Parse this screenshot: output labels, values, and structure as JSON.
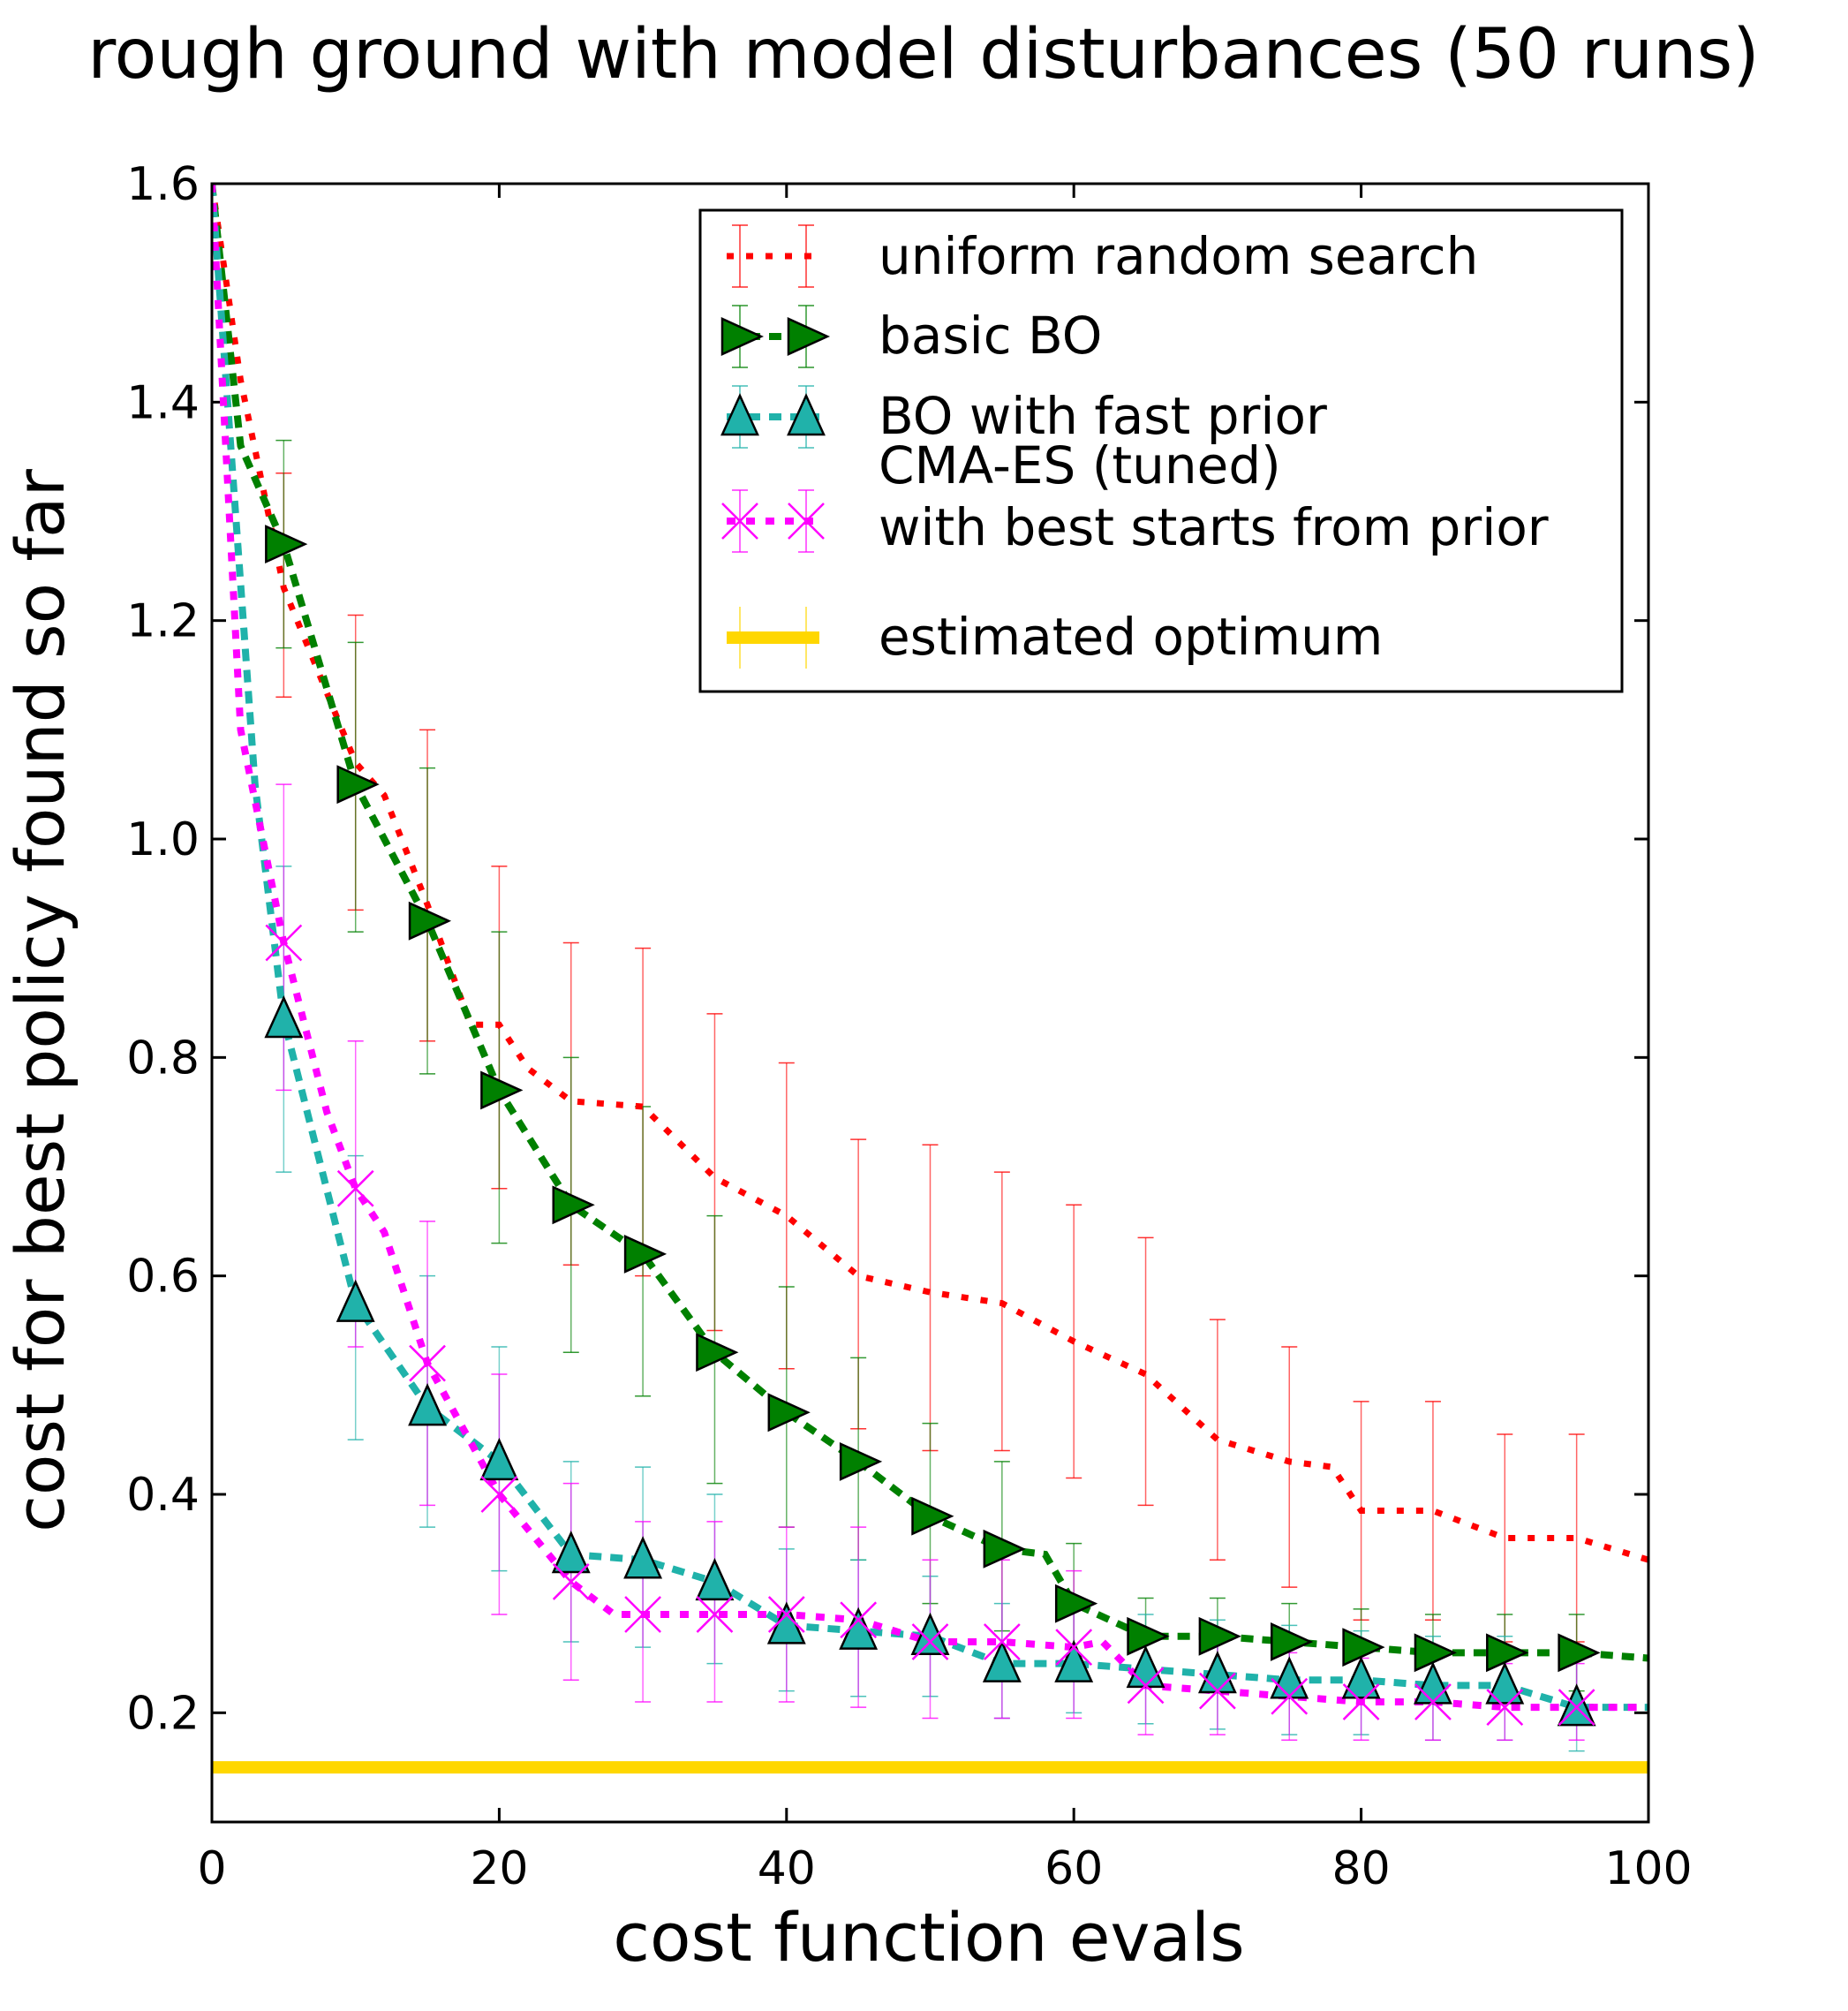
{
  "chart_data": {
    "type": "line",
    "title": "rough ground with model disturbances (50 runs)",
    "xlabel": "cost function evals",
    "ylabel": "cost for best policy found so far",
    "xlim": [
      0,
      100
    ],
    "ylim": [
      0.1,
      1.6
    ],
    "xticks": [
      0,
      20,
      40,
      60,
      80,
      100
    ],
    "xtick_labels": [
      "0",
      "20",
      "40",
      "60",
      "80",
      "100"
    ],
    "yticks": [
      0.2,
      0.4,
      0.6,
      0.8,
      1.0,
      1.2,
      1.4,
      1.6
    ],
    "ytick_labels": [
      "0.2",
      "0.4",
      "0.6",
      "0.8",
      "1.0",
      "1.2",
      "1.4",
      "1.6"
    ],
    "grid": false,
    "legend_position": "top-right",
    "series": [
      {
        "name": "uniform random search",
        "color": "#ff0000",
        "marker": "none",
        "x": [
          0,
          2,
          5,
          10,
          12,
          15,
          18,
          20,
          22,
          25,
          30,
          35,
          40,
          45,
          50,
          55,
          60,
          65,
          70,
          75,
          78,
          80,
          85,
          90,
          95,
          100
        ],
        "y": [
          1.6,
          1.42,
          1.23,
          1.07,
          1.04,
          0.94,
          0.83,
          0.83,
          0.79,
          0.76,
          0.755,
          0.69,
          0.655,
          0.6,
          0.585,
          0.575,
          0.54,
          0.51,
          0.45,
          0.43,
          0.425,
          0.385,
          0.385,
          0.36,
          0.36,
          0.34
        ],
        "error_x": [
          5,
          10,
          15,
          20,
          25,
          30,
          35,
          40,
          45,
          50,
          55,
          60,
          65,
          70,
          75,
          80,
          85,
          90,
          95
        ],
        "error_lower": [
          1.13,
          0.935,
          0.815,
          0.68,
          0.61,
          0.6,
          0.55,
          0.515,
          0.46,
          0.44,
          0.44,
          0.415,
          0.39,
          0.34,
          0.315,
          0.285,
          0.285,
          0.265,
          0.265
        ],
        "error_upper": [
          1.335,
          1.205,
          1.1,
          0.975,
          0.905,
          0.9,
          0.84,
          0.795,
          0.725,
          0.72,
          0.695,
          0.665,
          0.635,
          0.56,
          0.535,
          0.485,
          0.485,
          0.455,
          0.455
        ]
      },
      {
        "name": "basic BO",
        "color": "#008000",
        "marker": "triangle-right",
        "x": [
          0,
          2,
          5,
          10,
          15,
          20,
          25,
          30,
          35,
          40,
          45,
          50,
          55,
          58,
          60,
          65,
          70,
          75,
          80,
          85,
          90,
          95,
          100
        ],
        "y": [
          1.6,
          1.36,
          1.27,
          1.05,
          0.925,
          0.77,
          0.665,
          0.62,
          0.53,
          0.475,
          0.43,
          0.38,
          0.35,
          0.345,
          0.3,
          0.27,
          0.27,
          0.265,
          0.26,
          0.255,
          0.255,
          0.255,
          0.25
        ],
        "marker_x": [
          5,
          10,
          15,
          20,
          25,
          30,
          35,
          40,
          45,
          50,
          55,
          60,
          65,
          70,
          75,
          80,
          85,
          90,
          95
        ],
        "error_x": [
          5,
          10,
          15,
          20,
          25,
          30,
          35,
          40,
          45,
          50,
          55,
          60,
          65,
          70,
          75,
          80,
          85,
          90,
          95
        ],
        "error_lower": [
          1.175,
          0.915,
          0.785,
          0.63,
          0.53,
          0.49,
          0.41,
          0.37,
          0.34,
          0.3,
          0.275,
          0.245,
          0.24,
          0.235,
          0.23,
          0.225,
          0.22,
          0.22,
          0.22
        ],
        "error_upper": [
          1.365,
          1.18,
          1.065,
          0.915,
          0.8,
          0.755,
          0.655,
          0.59,
          0.525,
          0.465,
          0.43,
          0.355,
          0.305,
          0.305,
          0.3,
          0.295,
          0.29,
          0.29,
          0.29
        ]
      },
      {
        "name": "BO with fast prior",
        "color": "#20b2aa",
        "marker": "triangle-up",
        "x": [
          0,
          3,
          5,
          10,
          15,
          20,
          25,
          30,
          35,
          40,
          45,
          50,
          55,
          60,
          65,
          70,
          75,
          80,
          85,
          90,
          95,
          100
        ],
        "y": [
          1.6,
          1.05,
          0.835,
          0.575,
          0.48,
          0.43,
          0.345,
          0.34,
          0.32,
          0.28,
          0.275,
          0.27,
          0.245,
          0.245,
          0.24,
          0.235,
          0.23,
          0.23,
          0.225,
          0.225,
          0.205,
          0.205
        ],
        "marker_x": [
          5,
          10,
          15,
          20,
          25,
          30,
          35,
          40,
          45,
          50,
          55,
          60,
          65,
          70,
          75,
          80,
          85,
          90,
          95
        ],
        "error_x": [
          5,
          10,
          15,
          20,
          25,
          30,
          35,
          40,
          45,
          50,
          55,
          60,
          65,
          70,
          75,
          80,
          85,
          90,
          95
        ],
        "error_lower": [
          0.695,
          0.45,
          0.37,
          0.33,
          0.265,
          0.26,
          0.245,
          0.22,
          0.215,
          0.215,
          0.195,
          0.2,
          0.19,
          0.185,
          0.18,
          0.18,
          0.175,
          0.175,
          0.165
        ],
        "error_upper": [
          0.975,
          0.71,
          0.6,
          0.535,
          0.43,
          0.425,
          0.4,
          0.35,
          0.34,
          0.325,
          0.3,
          0.295,
          0.29,
          0.285,
          0.28,
          0.275,
          0.27,
          0.27,
          0.25
        ]
      },
      {
        "name": "CMA-ES (tuned)\nwith best starts from prior",
        "color": "#ff00ff",
        "marker": "x",
        "x": [
          0,
          2,
          5,
          8,
          10,
          12,
          15,
          20,
          25,
          28,
          30,
          35,
          40,
          45,
          50,
          55,
          60,
          62,
          65,
          70,
          75,
          80,
          85,
          90,
          95,
          100
        ],
        "y": [
          1.6,
          1.1,
          0.905,
          0.75,
          0.68,
          0.64,
          0.52,
          0.4,
          0.32,
          0.29,
          0.29,
          0.29,
          0.29,
          0.285,
          0.265,
          0.265,
          0.26,
          0.265,
          0.225,
          0.22,
          0.215,
          0.21,
          0.21,
          0.205,
          0.205,
          0.205
        ],
        "marker_x": [
          5,
          10,
          15,
          20,
          25,
          30,
          35,
          40,
          45,
          50,
          55,
          60,
          65,
          70,
          75,
          80,
          85,
          90,
          95
        ],
        "error_x": [
          5,
          10,
          15,
          20,
          25,
          30,
          35,
          40,
          45,
          50,
          55,
          60,
          65,
          70,
          75,
          80,
          85,
          90,
          95
        ],
        "error_lower": [
          0.77,
          0.535,
          0.39,
          0.29,
          0.23,
          0.21,
          0.21,
          0.21,
          0.205,
          0.195,
          0.195,
          0.195,
          0.18,
          0.18,
          0.175,
          0.175,
          0.175,
          0.175,
          0.175
        ],
        "error_upper": [
          1.05,
          0.815,
          0.65,
          0.51,
          0.41,
          0.375,
          0.375,
          0.37,
          0.37,
          0.34,
          0.34,
          0.33,
          0.27,
          0.265,
          0.255,
          0.25,
          0.25,
          0.245,
          0.245
        ]
      },
      {
        "name": "estimated optimum",
        "color": "#ffd700",
        "marker": "none",
        "x": [
          0,
          100
        ],
        "y": [
          0.15,
          0.15
        ]
      }
    ]
  }
}
